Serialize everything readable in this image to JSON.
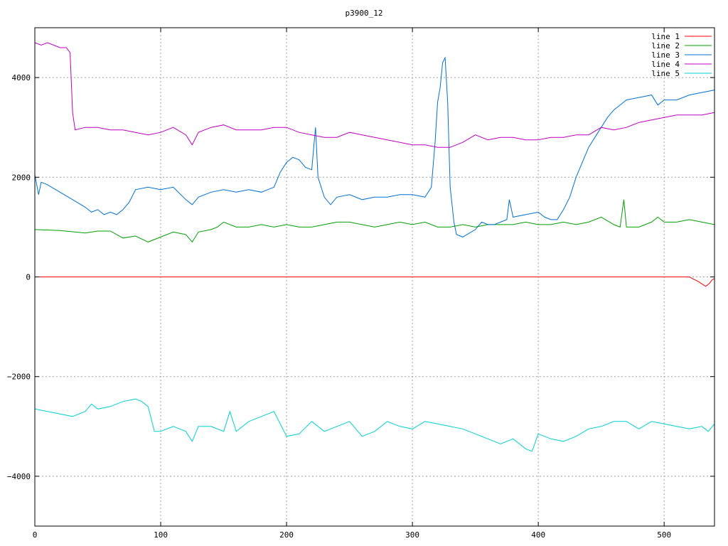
{
  "chart_data": {
    "type": "line",
    "title": "p3900_12",
    "xlabel": "",
    "ylabel": "",
    "xlim": [
      0,
      540
    ],
    "ylim": [
      -5000,
      5000
    ],
    "x_ticks": [
      0,
      100,
      200,
      300,
      400,
      500
    ],
    "y_ticks": [
      -4000,
      -2000,
      0,
      2000,
      4000
    ],
    "grid": true,
    "legend_position": "top-right",
    "series": [
      {
        "name": "line 1",
        "color": "#ff0000",
        "points": [
          [
            0,
            0
          ],
          [
            520,
            0
          ],
          [
            523,
            -40
          ],
          [
            527,
            -90
          ],
          [
            530,
            -140
          ],
          [
            533,
            -190
          ],
          [
            536,
            -130
          ],
          [
            538,
            -60
          ],
          [
            540,
            -30
          ]
        ]
      },
      {
        "name": "line 2",
        "color": "#00a000",
        "points": [
          [
            0,
            950
          ],
          [
            20,
            930
          ],
          [
            40,
            880
          ],
          [
            50,
            920
          ],
          [
            60,
            920
          ],
          [
            70,
            780
          ],
          [
            80,
            820
          ],
          [
            90,
            700
          ],
          [
            100,
            800
          ],
          [
            110,
            900
          ],
          [
            120,
            850
          ],
          [
            125,
            700
          ],
          [
            130,
            900
          ],
          [
            140,
            950
          ],
          [
            145,
            1000
          ],
          [
            150,
            1100
          ],
          [
            160,
            1000
          ],
          [
            170,
            1000
          ],
          [
            180,
            1050
          ],
          [
            190,
            1000
          ],
          [
            200,
            1050
          ],
          [
            210,
            1000
          ],
          [
            220,
            1000
          ],
          [
            230,
            1050
          ],
          [
            240,
            1100
          ],
          [
            250,
            1100
          ],
          [
            260,
            1050
          ],
          [
            270,
            1000
          ],
          [
            280,
            1050
          ],
          [
            290,
            1100
          ],
          [
            300,
            1050
          ],
          [
            310,
            1100
          ],
          [
            320,
            1000
          ],
          [
            330,
            1000
          ],
          [
            340,
            1050
          ],
          [
            350,
            1000
          ],
          [
            360,
            1050
          ],
          [
            370,
            1050
          ],
          [
            380,
            1050
          ],
          [
            390,
            1100
          ],
          [
            400,
            1050
          ],
          [
            410,
            1050
          ],
          [
            420,
            1100
          ],
          [
            430,
            1050
          ],
          [
            440,
            1100
          ],
          [
            450,
            1200
          ],
          [
            460,
            1050
          ],
          [
            465,
            1000
          ],
          [
            468,
            1550
          ],
          [
            470,
            1000
          ],
          [
            480,
            1000
          ],
          [
            490,
            1100
          ],
          [
            495,
            1200
          ],
          [
            500,
            1100
          ],
          [
            510,
            1100
          ],
          [
            520,
            1150
          ],
          [
            530,
            1100
          ],
          [
            540,
            1050
          ]
        ]
      },
      {
        "name": "line 3",
        "color": "#0070d0",
        "points": [
          [
            0,
            2050
          ],
          [
            3,
            1650
          ],
          [
            5,
            1900
          ],
          [
            10,
            1850
          ],
          [
            20,
            1700
          ],
          [
            30,
            1550
          ],
          [
            40,
            1400
          ],
          [
            45,
            1300
          ],
          [
            50,
            1350
          ],
          [
            55,
            1250
          ],
          [
            60,
            1300
          ],
          [
            65,
            1250
          ],
          [
            70,
            1350
          ],
          [
            75,
            1500
          ],
          [
            80,
            1750
          ],
          [
            90,
            1800
          ],
          [
            100,
            1750
          ],
          [
            110,
            1800
          ],
          [
            120,
            1550
          ],
          [
            125,
            1450
          ],
          [
            130,
            1600
          ],
          [
            140,
            1700
          ],
          [
            150,
            1750
          ],
          [
            160,
            1700
          ],
          [
            170,
            1750
          ],
          [
            180,
            1700
          ],
          [
            190,
            1800
          ],
          [
            195,
            2100
          ],
          [
            200,
            2300
          ],
          [
            205,
            2400
          ],
          [
            210,
            2350
          ],
          [
            215,
            2200
          ],
          [
            220,
            2150
          ],
          [
            223,
            3000
          ],
          [
            225,
            2000
          ],
          [
            230,
            1600
          ],
          [
            235,
            1450
          ],
          [
            240,
            1600
          ],
          [
            250,
            1650
          ],
          [
            260,
            1550
          ],
          [
            270,
            1600
          ],
          [
            280,
            1600
          ],
          [
            290,
            1650
          ],
          [
            300,
            1650
          ],
          [
            310,
            1600
          ],
          [
            315,
            1800
          ],
          [
            318,
            2700
          ],
          [
            320,
            3500
          ],
          [
            322,
            3800
          ],
          [
            324,
            4300
          ],
          [
            326,
            4400
          ],
          [
            328,
            3500
          ],
          [
            330,
            1800
          ],
          [
            333,
            1100
          ],
          [
            335,
            850
          ],
          [
            340,
            800
          ],
          [
            350,
            950
          ],
          [
            355,
            1100
          ],
          [
            360,
            1050
          ],
          [
            365,
            1050
          ],
          [
            370,
            1100
          ],
          [
            375,
            1150
          ],
          [
            377,
            1550
          ],
          [
            380,
            1200
          ],
          [
            390,
            1250
          ],
          [
            400,
            1300
          ],
          [
            405,
            1200
          ],
          [
            410,
            1150
          ],
          [
            415,
            1150
          ],
          [
            420,
            1350
          ],
          [
            425,
            1600
          ],
          [
            430,
            2000
          ],
          [
            435,
            2300
          ],
          [
            440,
            2600
          ],
          [
            445,
            2800
          ],
          [
            450,
            3000
          ],
          [
            455,
            3200
          ],
          [
            460,
            3350
          ],
          [
            470,
            3550
          ],
          [
            480,
            3600
          ],
          [
            490,
            3650
          ],
          [
            495,
            3450
          ],
          [
            500,
            3550
          ],
          [
            510,
            3550
          ],
          [
            520,
            3650
          ],
          [
            530,
            3700
          ],
          [
            540,
            3750
          ]
        ]
      },
      {
        "name": "line 4",
        "color": "#c000c0",
        "points": [
          [
            0,
            4700
          ],
          [
            5,
            4650
          ],
          [
            10,
            4700
          ],
          [
            15,
            4650
          ],
          [
            20,
            4600
          ],
          [
            25,
            4600
          ],
          [
            28,
            4500
          ],
          [
            30,
            3300
          ],
          [
            32,
            2950
          ],
          [
            40,
            3000
          ],
          [
            50,
            3000
          ],
          [
            60,
            2950
          ],
          [
            70,
            2950
          ],
          [
            80,
            2900
          ],
          [
            90,
            2850
          ],
          [
            100,
            2900
          ],
          [
            110,
            3000
          ],
          [
            120,
            2850
          ],
          [
            125,
            2650
          ],
          [
            130,
            2900
          ],
          [
            140,
            3000
          ],
          [
            150,
            3050
          ],
          [
            160,
            2950
          ],
          [
            170,
            2950
          ],
          [
            180,
            2950
          ],
          [
            190,
            3000
          ],
          [
            200,
            3000
          ],
          [
            210,
            2900
          ],
          [
            220,
            2850
          ],
          [
            230,
            2800
          ],
          [
            240,
            2800
          ],
          [
            250,
            2900
          ],
          [
            260,
            2850
          ],
          [
            270,
            2800
          ],
          [
            280,
            2750
          ],
          [
            290,
            2700
          ],
          [
            300,
            2650
          ],
          [
            310,
            2650
          ],
          [
            320,
            2600
          ],
          [
            330,
            2600
          ],
          [
            340,
            2700
          ],
          [
            350,
            2850
          ],
          [
            360,
            2750
          ],
          [
            370,
            2800
          ],
          [
            380,
            2800
          ],
          [
            390,
            2750
          ],
          [
            400,
            2750
          ],
          [
            410,
            2800
          ],
          [
            420,
            2800
          ],
          [
            430,
            2850
          ],
          [
            440,
            2850
          ],
          [
            450,
            3000
          ],
          [
            460,
            2950
          ],
          [
            470,
            3000
          ],
          [
            480,
            3100
          ],
          [
            490,
            3150
          ],
          [
            500,
            3200
          ],
          [
            510,
            3250
          ],
          [
            520,
            3250
          ],
          [
            530,
            3250
          ],
          [
            540,
            3300
          ]
        ]
      },
      {
        "name": "line 5",
        "color": "#00d0d0",
        "points": [
          [
            0,
            -2650
          ],
          [
            10,
            -2700
          ],
          [
            20,
            -2750
          ],
          [
            30,
            -2800
          ],
          [
            40,
            -2700
          ],
          [
            45,
            -2550
          ],
          [
            50,
            -2650
          ],
          [
            60,
            -2600
          ],
          [
            70,
            -2500
          ],
          [
            80,
            -2450
          ],
          [
            85,
            -2500
          ],
          [
            90,
            -2600
          ],
          [
            95,
            -3100
          ],
          [
            100,
            -3100
          ],
          [
            110,
            -3000
          ],
          [
            120,
            -3100
          ],
          [
            125,
            -3300
          ],
          [
            130,
            -3000
          ],
          [
            140,
            -3000
          ],
          [
            150,
            -3100
          ],
          [
            155,
            -2700
          ],
          [
            160,
            -3100
          ],
          [
            170,
            -2900
          ],
          [
            180,
            -2800
          ],
          [
            190,
            -2700
          ],
          [
            200,
            -3200
          ],
          [
            210,
            -3150
          ],
          [
            220,
            -2900
          ],
          [
            230,
            -3100
          ],
          [
            240,
            -3000
          ],
          [
            250,
            -2900
          ],
          [
            260,
            -3200
          ],
          [
            270,
            -3100
          ],
          [
            280,
            -2900
          ],
          [
            290,
            -3000
          ],
          [
            300,
            -3050
          ],
          [
            310,
            -2900
          ],
          [
            320,
            -2950
          ],
          [
            330,
            -3000
          ],
          [
            340,
            -3050
          ],
          [
            350,
            -3150
          ],
          [
            360,
            -3250
          ],
          [
            370,
            -3350
          ],
          [
            380,
            -3250
          ],
          [
            390,
            -3450
          ],
          [
            395,
            -3500
          ],
          [
            400,
            -3150
          ],
          [
            405,
            -3200
          ],
          [
            410,
            -3250
          ],
          [
            420,
            -3300
          ],
          [
            430,
            -3200
          ],
          [
            440,
            -3050
          ],
          [
            450,
            -3000
          ],
          [
            460,
            -2900
          ],
          [
            470,
            -2900
          ],
          [
            480,
            -3050
          ],
          [
            490,
            -2900
          ],
          [
            500,
            -2950
          ],
          [
            510,
            -3000
          ],
          [
            520,
            -3050
          ],
          [
            530,
            -3000
          ],
          [
            535,
            -3100
          ],
          [
            540,
            -2950
          ]
        ]
      }
    ]
  }
}
